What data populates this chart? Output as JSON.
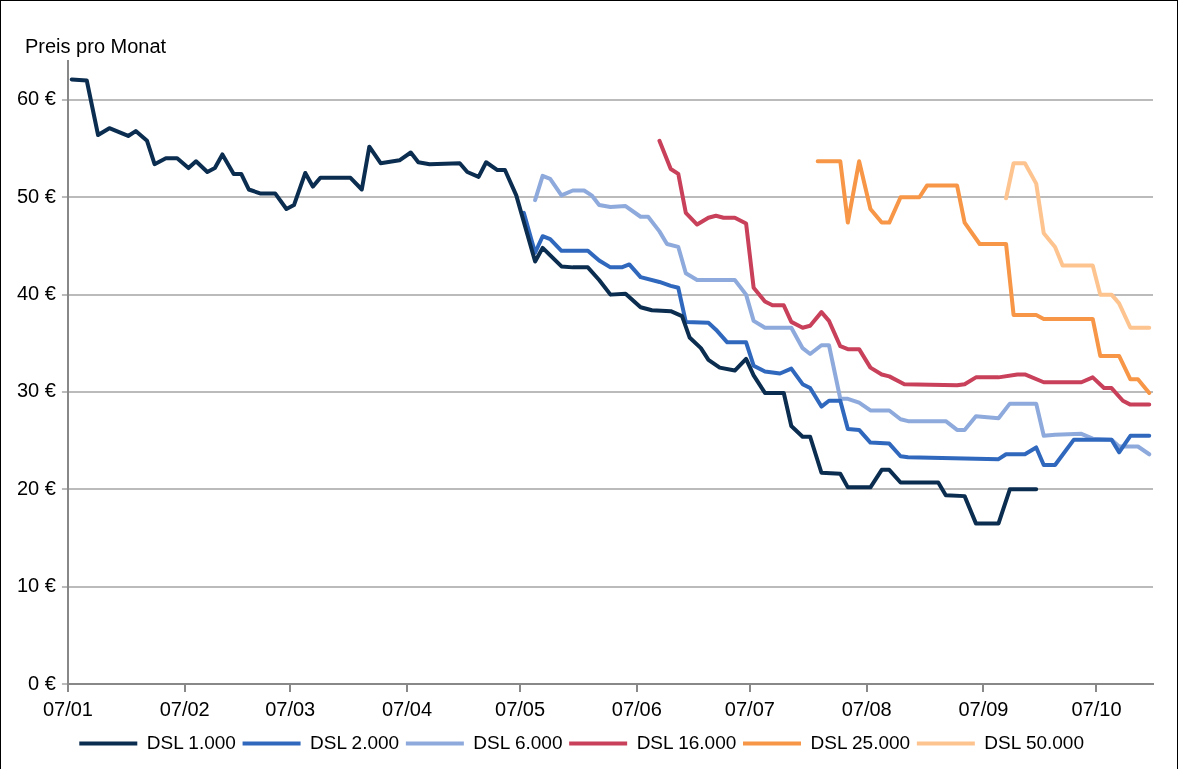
{
  "chart_data": {
    "type": "line",
    "ylabel": "Preis pro Monat",
    "xlim": [
      "2007-01-01",
      "2007-10-16"
    ],
    "xticks": [
      {
        "value": "2007-01",
        "label": "07/01"
      },
      {
        "value": "2007-02",
        "label": "07/02"
      },
      {
        "value": "2007-03",
        "label": "07/03"
      },
      {
        "value": "2007-04",
        "label": "07/04"
      },
      {
        "value": "2007-05",
        "label": "07/05"
      },
      {
        "value": "2007-06",
        "label": "07/06"
      },
      {
        "value": "2007-07",
        "label": "07/07"
      },
      {
        "value": "2007-08",
        "label": "07/08"
      },
      {
        "value": "2007-09",
        "label": "07/09"
      },
      {
        "value": "2007-10",
        "label": "07/10"
      }
    ],
    "ylim": [
      0,
      64
    ],
    "yticks": [
      {
        "value": 0,
        "label": "0 €"
      },
      {
        "value": 10,
        "label": "10 €"
      },
      {
        "value": 20,
        "label": "20 €"
      },
      {
        "value": 30,
        "label": "30 €"
      },
      {
        "value": 40,
        "label": "40 €"
      },
      {
        "value": 50,
        "label": "50 €"
      },
      {
        "value": 60,
        "label": "60 €"
      }
    ],
    "grid": "y",
    "legend": "bottom",
    "marker": "none",
    "line_style": "solid",
    "series": [
      {
        "name": "DSL 1.000",
        "color": "#0b2d50",
        "x": [
          "2007-01-02",
          "2007-01-06",
          "2007-01-09",
          "2007-01-12",
          "2007-01-17",
          "2007-01-19",
          "2007-01-22",
          "2007-01-24",
          "2007-01-27",
          "2007-01-30",
          "2007-02-02",
          "2007-02-04",
          "2007-02-07",
          "2007-02-09",
          "2007-02-11",
          "2007-02-14",
          "2007-02-16",
          "2007-02-18",
          "2007-02-21",
          "2007-02-25",
          "2007-02-28",
          "2007-03-02",
          "2007-03-05",
          "2007-03-07",
          "2007-03-09",
          "2007-03-17",
          "2007-03-20",
          "2007-03-22",
          "2007-03-25",
          "2007-03-30",
          "2007-04-02",
          "2007-04-04",
          "2007-04-07",
          "2007-04-15",
          "2007-04-17",
          "2007-04-20",
          "2007-04-22",
          "2007-04-25",
          "2007-04-27",
          "2007-04-30",
          "2007-05-05",
          "2007-05-07",
          "2007-05-12",
          "2007-05-15",
          "2007-05-19",
          "2007-05-22",
          "2007-05-25",
          "2007-05-29",
          "2007-06-02",
          "2007-06-05",
          "2007-06-10",
          "2007-06-13",
          "2007-06-15",
          "2007-06-18",
          "2007-06-20",
          "2007-06-23",
          "2007-06-27",
          "2007-06-30",
          "2007-07-02",
          "2007-07-05",
          "2007-07-10",
          "2007-07-12",
          "2007-07-15",
          "2007-07-17",
          "2007-07-20",
          "2007-07-25",
          "2007-07-27",
          "2007-08-02",
          "2007-08-05",
          "2007-08-07",
          "2007-08-10",
          "2007-08-20",
          "2007-08-22",
          "2007-08-27",
          "2007-08-30",
          "2007-09-05",
          "2007-09-08",
          "2007-09-15"
        ],
        "values": [
          62.1,
          62.0,
          56.4,
          57.1,
          56.3,
          56.8,
          55.8,
          53.4,
          54.0,
          54.0,
          53.0,
          53.7,
          52.6,
          53.0,
          54.4,
          52.4,
          52.4,
          50.8,
          50.4,
          50.4,
          48.8,
          49.2,
          52.5,
          51.1,
          52.0,
          52.0,
          50.8,
          55.2,
          53.5,
          53.8,
          54.6,
          53.6,
          53.4,
          53.5,
          52.6,
          52.1,
          53.6,
          52.8,
          52.8,
          50.2,
          43.4,
          44.8,
          42.9,
          42.8,
          42.8,
          41.5,
          40.0,
          40.1,
          38.7,
          38.4,
          38.3,
          37.8,
          35.6,
          34.5,
          33.3,
          32.5,
          32.2,
          33.4,
          31.7,
          29.9,
          29.9,
          26.5,
          25.4,
          25.4,
          21.7,
          21.6,
          20.2,
          20.2,
          22.0,
          22.0,
          20.7,
          20.7,
          19.4,
          19.3,
          16.5,
          16.5,
          20.0,
          20.0
        ]
      },
      {
        "name": "DSL 2.000",
        "color": "#3068be",
        "x": [
          "2007-05-02",
          "2007-05-05",
          "2007-05-07",
          "2007-05-09",
          "2007-05-12",
          "2007-05-19",
          "2007-05-22",
          "2007-05-25",
          "2007-05-28",
          "2007-05-30",
          "2007-06-02",
          "2007-06-07",
          "2007-06-10",
          "2007-06-12",
          "2007-06-14",
          "2007-06-20",
          "2007-06-22",
          "2007-06-25",
          "2007-06-30",
          "2007-07-02",
          "2007-07-05",
          "2007-07-09",
          "2007-07-12",
          "2007-07-15",
          "2007-07-17",
          "2007-07-20",
          "2007-07-22",
          "2007-07-25",
          "2007-07-27",
          "2007-07-30",
          "2007-08-02",
          "2007-08-07",
          "2007-08-10",
          "2007-08-12",
          "2007-09-05",
          "2007-09-07",
          "2007-09-12",
          "2007-09-15",
          "2007-09-17",
          "2007-09-20",
          "2007-09-25",
          "2007-10-05",
          "2007-10-07",
          "2007-10-10",
          "2007-10-15"
        ],
        "values": [
          48.4,
          44.3,
          46.0,
          45.7,
          44.5,
          44.5,
          43.5,
          42.8,
          42.8,
          43.1,
          41.8,
          41.3,
          40.9,
          40.7,
          37.2,
          37.1,
          36.4,
          35.1,
          35.1,
          32.7,
          32.1,
          31.9,
          32.4,
          30.8,
          30.4,
          28.5,
          29.1,
          29.1,
          26.2,
          26.1,
          24.8,
          24.7,
          23.4,
          23.3,
          23.1,
          23.6,
          23.6,
          24.3,
          22.5,
          22.5,
          25.1,
          25.1,
          23.8,
          25.5,
          25.5
        ]
      },
      {
        "name": "DSL 6.000",
        "color": "#8eaadc",
        "x": [
          "2007-05-05",
          "2007-05-07",
          "2007-05-09",
          "2007-05-12",
          "2007-05-15",
          "2007-05-18",
          "2007-05-20",
          "2007-05-22",
          "2007-05-25",
          "2007-05-29",
          "2007-06-02",
          "2007-06-04",
          "2007-06-07",
          "2007-06-09",
          "2007-06-12",
          "2007-06-14",
          "2007-06-17",
          "2007-06-27",
          "2007-06-30",
          "2007-07-02",
          "2007-07-05",
          "2007-07-12",
          "2007-07-15",
          "2007-07-17",
          "2007-07-20",
          "2007-07-22",
          "2007-07-25",
          "2007-07-27",
          "2007-07-30",
          "2007-08-02",
          "2007-08-07",
          "2007-08-10",
          "2007-08-12",
          "2007-08-22",
          "2007-08-25",
          "2007-08-27",
          "2007-08-30",
          "2007-09-05",
          "2007-09-08",
          "2007-09-15",
          "2007-09-17",
          "2007-09-20",
          "2007-09-27",
          "2007-09-30",
          "2007-10-05",
          "2007-10-07",
          "2007-10-12",
          "2007-10-15"
        ],
        "values": [
          49.7,
          52.2,
          51.9,
          50.2,
          50.7,
          50.7,
          50.2,
          49.2,
          49.0,
          49.1,
          48.0,
          48.0,
          46.5,
          45.2,
          44.9,
          42.2,
          41.5,
          41.5,
          40.0,
          37.3,
          36.6,
          36.6,
          34.5,
          33.9,
          34.8,
          34.8,
          29.3,
          29.3,
          28.9,
          28.1,
          28.1,
          27.2,
          27.0,
          27.0,
          26.1,
          26.1,
          27.5,
          27.3,
          28.8,
          28.8,
          25.5,
          25.6,
          25.7,
          25.2,
          25.1,
          24.4,
          24.4,
          23.6
        ]
      },
      {
        "name": "DSL 16.000",
        "color": "#c8405a",
        "x": [
          "2007-06-07",
          "2007-06-10",
          "2007-06-12",
          "2007-06-14",
          "2007-06-17",
          "2007-06-20",
          "2007-06-22",
          "2007-06-24",
          "2007-06-27",
          "2007-06-30",
          "2007-07-02",
          "2007-07-05",
          "2007-07-07",
          "2007-07-10",
          "2007-07-12",
          "2007-07-15",
          "2007-07-17",
          "2007-07-20",
          "2007-07-22",
          "2007-07-25",
          "2007-07-27",
          "2007-07-30",
          "2007-08-02",
          "2007-08-05",
          "2007-08-07",
          "2007-08-11",
          "2007-08-25",
          "2007-08-27",
          "2007-08-30",
          "2007-09-05",
          "2007-09-10",
          "2007-09-12",
          "2007-09-17",
          "2007-09-27",
          "2007-09-30",
          "2007-10-03",
          "2007-10-05",
          "2007-10-08",
          "2007-10-10",
          "2007-10-15"
        ],
        "values": [
          55.8,
          52.9,
          52.4,
          48.4,
          47.2,
          47.9,
          48.1,
          47.9,
          47.9,
          47.3,
          40.7,
          39.3,
          38.9,
          38.9,
          37.2,
          36.6,
          36.8,
          38.2,
          37.3,
          34.7,
          34.4,
          34.4,
          32.5,
          31.8,
          31.6,
          30.8,
          30.7,
          30.8,
          31.5,
          31.5,
          31.8,
          31.8,
          31.0,
          31.0,
          31.5,
          30.4,
          30.4,
          29.1,
          28.7,
          28.7
        ]
      },
      {
        "name": "DSL 25.000",
        "color": "#f79646",
        "x": [
          "2007-07-19",
          "2007-07-25",
          "2007-07-27",
          "2007-07-30",
          "2007-08-02",
          "2007-08-05",
          "2007-08-07",
          "2007-08-10",
          "2007-08-15",
          "2007-08-17",
          "2007-08-25",
          "2007-08-27",
          "2007-08-31",
          "2007-09-07",
          "2007-09-09",
          "2007-09-15",
          "2007-09-17",
          "2007-09-30",
          "2007-10-02",
          "2007-10-07",
          "2007-10-10",
          "2007-10-12",
          "2007-10-15"
        ],
        "values": [
          53.7,
          53.7,
          47.4,
          53.7,
          48.8,
          47.4,
          47.4,
          50.0,
          50.0,
          51.2,
          51.2,
          47.4,
          45.2,
          45.2,
          37.9,
          37.9,
          37.5,
          37.5,
          33.7,
          33.7,
          31.3,
          31.3,
          29.9
        ]
      },
      {
        "name": "DSL 50.000",
        "color": "#fdc490",
        "x": [
          "2007-09-07",
          "2007-09-09",
          "2007-09-12",
          "2007-09-15",
          "2007-09-17",
          "2007-09-20",
          "2007-09-22",
          "2007-09-30",
          "2007-10-02",
          "2007-10-05",
          "2007-10-07",
          "2007-10-10",
          "2007-10-15"
        ],
        "values": [
          49.9,
          53.5,
          53.5,
          51.4,
          46.3,
          44.9,
          43.0,
          43.0,
          40.0,
          40.0,
          39.1,
          36.6,
          36.6
        ]
      }
    ]
  }
}
